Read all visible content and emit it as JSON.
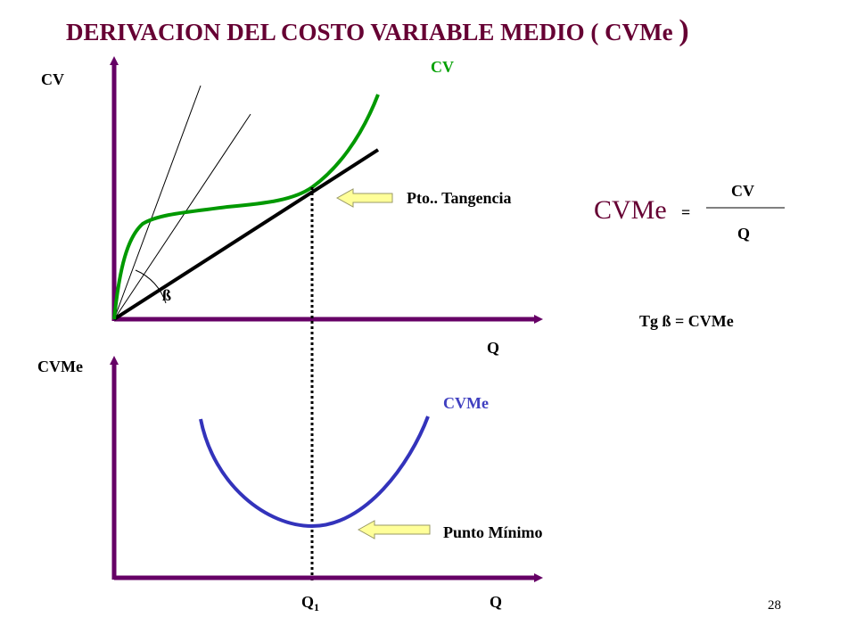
{
  "slide": {
    "title_main": "DERIVACION DEL COSTO VARIABLE MEDIO ( CVMe",
    "title_close": ")",
    "page_number": "28"
  },
  "top_chart": {
    "y_axis_label": "CV",
    "x_axis_label": "Q",
    "curve_label": "CV",
    "angle_label": "ß",
    "tangency_label": "Pto.. Tangencia"
  },
  "bottom_chart": {
    "y_axis_label": "CVMe",
    "x_axis_label": "Q",
    "curve_label": "CVMe",
    "min_label": "Punto Mínimo",
    "q1_base": "Q",
    "q1_sub": "1"
  },
  "formula": {
    "lhs": "CVMe",
    "equals": "=",
    "numerator": "CV",
    "denominator": "Q",
    "tangent_base": "Tg ß =",
    "tangent_value": "CVMe"
  },
  "colors": {
    "axis": "#660066",
    "cv_curve": "#009900",
    "cv_label": "#00a000",
    "cvme_curve": "#3333bb",
    "cvme_label": "#4040c0",
    "title": "#660033",
    "arrow_fill": "#ffff99",
    "arrow_stroke": "#999966"
  }
}
